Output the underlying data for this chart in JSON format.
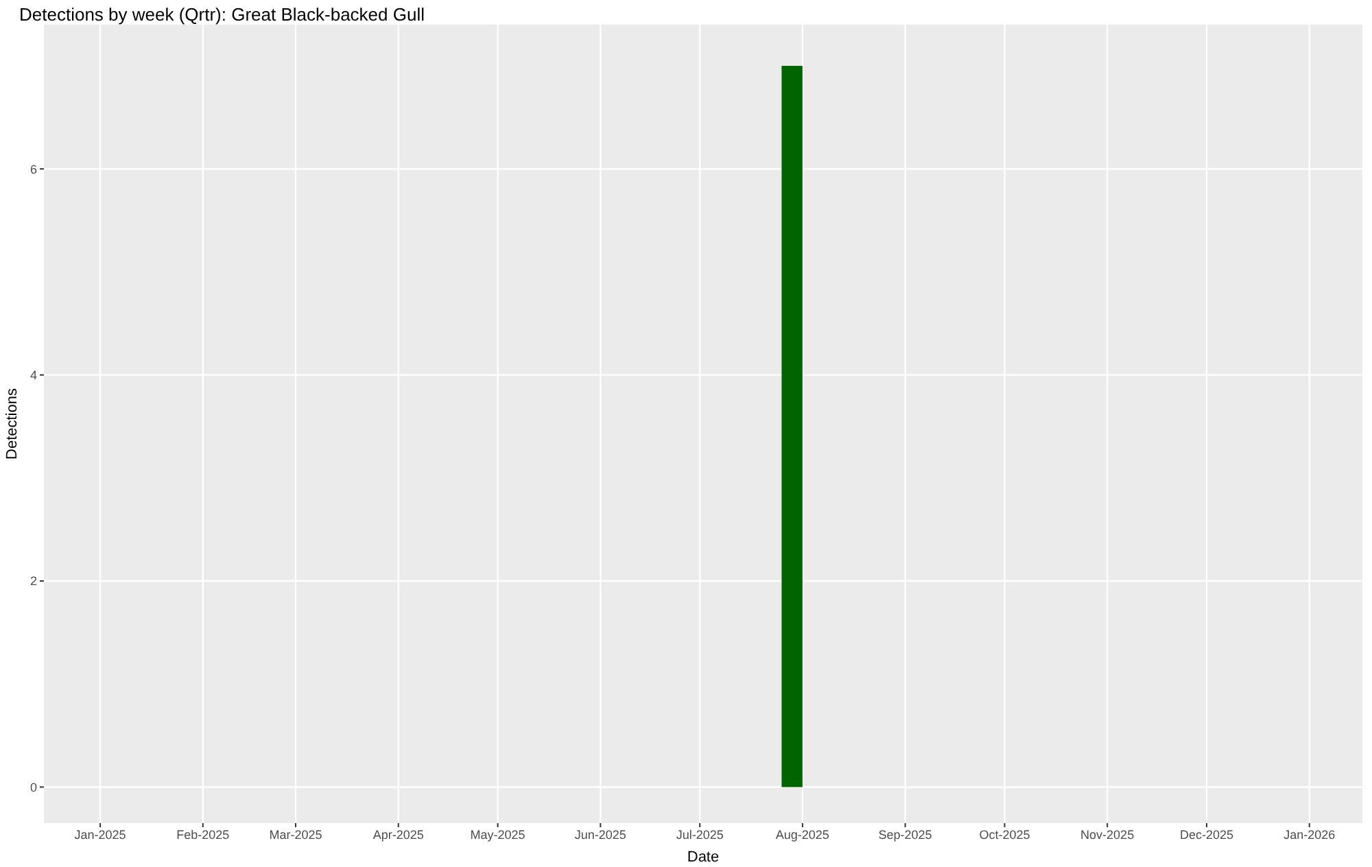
{
  "chart_data": {
    "type": "bar",
    "title": "Detections by week (Qrtr): Great Black-backed Gull",
    "xlabel": "Date",
    "ylabel": "Detections",
    "x": [
      "2025-07-29"
    ],
    "series": [
      {
        "color": "#006400",
        "values": [
          7
        ]
      }
    ],
    "xlim": [
      "2024-12-15",
      "2026-01-17"
    ],
    "xticks": [
      {
        "value": "2025-01-01",
        "label": "Jan-2025"
      },
      {
        "value": "2025-02-01",
        "label": "Feb-2025"
      },
      {
        "value": "2025-03-01",
        "label": "Mar-2025"
      },
      {
        "value": "2025-04-01",
        "label": "Apr-2025"
      },
      {
        "value": "2025-05-01",
        "label": "May-2025"
      },
      {
        "value": "2025-06-01",
        "label": "Jun-2025"
      },
      {
        "value": "2025-07-01",
        "label": "Jul-2025"
      },
      {
        "value": "2025-08-01",
        "label": "Aug-2025"
      },
      {
        "value": "2025-09-01",
        "label": "Sep-2025"
      },
      {
        "value": "2025-10-01",
        "label": "Oct-2025"
      },
      {
        "value": "2025-11-01",
        "label": "Nov-2025"
      },
      {
        "value": "2025-12-01",
        "label": "Dec-2025"
      },
      {
        "value": "2026-01-01",
        "label": "Jan-2026"
      }
    ],
    "ylim": [
      -0.35,
      7.4
    ],
    "yticks": [
      0,
      2,
      4,
      6
    ],
    "grid": true
  }
}
